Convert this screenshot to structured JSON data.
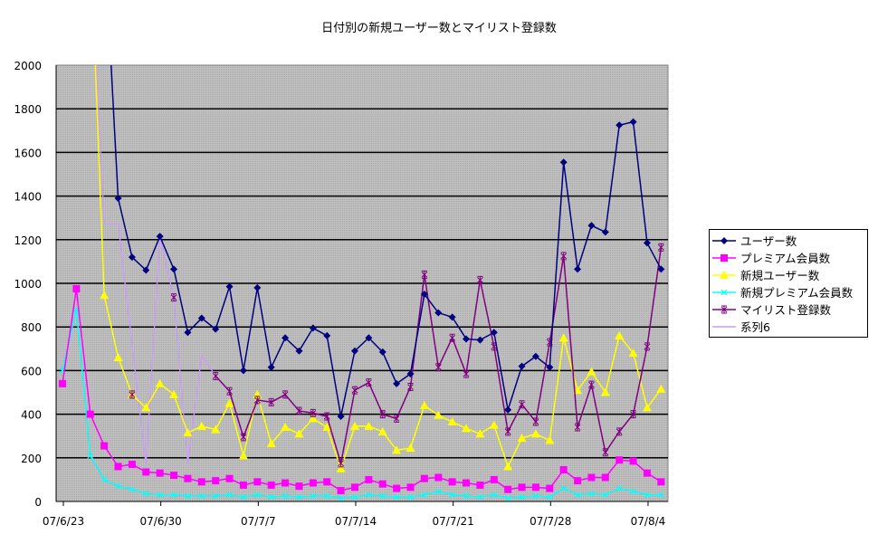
{
  "chart_data": {
    "type": "line",
    "title": "日付別の新規ユーザー数とマイリスト登録数",
    "xlabel": "",
    "ylabel": "",
    "ylim": [
      0,
      2000
    ],
    "yticks": [
      0,
      200,
      400,
      600,
      800,
      1000,
      1200,
      1400,
      1600,
      1800,
      2000
    ],
    "x_tick_labels": [
      "07/6/23",
      "07/6/30",
      "07/7/7",
      "07/7/14",
      "07/7/21",
      "07/7/28",
      "07/8/4"
    ],
    "x_start": "07/6/23",
    "x_end": "07/8/5",
    "grid": true,
    "legend_position": "right",
    "background": "#c0c0c0",
    "series": [
      {
        "name": "ユーザー数",
        "color": "#000080",
        "marker": "diamond",
        "values": [
          null,
          null,
          null,
          2600,
          1390,
          1120,
          1060,
          1215,
          1065,
          775,
          840,
          790,
          985,
          600,
          980,
          615,
          750,
          690,
          795,
          760,
          390,
          690,
          750,
          685,
          540,
          585,
          950,
          865,
          845,
          745,
          740,
          775,
          420,
          620,
          665,
          615,
          1555,
          1065,
          1265,
          1235,
          1725,
          1740,
          1185,
          1065
        ]
      },
      {
        "name": "プレミアム会員数",
        "color": "#ff00ff",
        "marker": "square",
        "values": [
          540,
          975,
          400,
          255,
          160,
          170,
          135,
          130,
          120,
          105,
          90,
          95,
          105,
          75,
          90,
          75,
          85,
          70,
          85,
          90,
          50,
          65,
          100,
          80,
          60,
          65,
          105,
          110,
          90,
          85,
          75,
          100,
          55,
          65,
          65,
          60,
          145,
          95,
          110,
          110,
          190,
          185,
          130,
          90
        ]
      },
      {
        "name": "新規ユーザー数",
        "color": "#ffff00",
        "marker": "triangle",
        "values": [
          null,
          null,
          2600,
          945,
          660,
          490,
          430,
          540,
          490,
          315,
          345,
          330,
          450,
          210,
          490,
          265,
          340,
          310,
          380,
          340,
          150,
          345,
          345,
          320,
          235,
          245,
          440,
          395,
          365,
          335,
          310,
          350,
          160,
          290,
          310,
          280,
          750,
          510,
          595,
          500,
          760,
          680,
          430,
          515
        ]
      },
      {
        "name": "新規プレミアム会員数",
        "color": "#00ffff",
        "marker": "x",
        "values": [
          600,
          880,
          210,
          100,
          70,
          55,
          35,
          30,
          30,
          25,
          25,
          25,
          30,
          20,
          30,
          20,
          25,
          20,
          25,
          25,
          15,
          20,
          30,
          25,
          20,
          20,
          30,
          45,
          30,
          25,
          20,
          30,
          15,
          20,
          25,
          20,
          60,
          30,
          35,
          30,
          60,
          45,
          30,
          30
        ]
      },
      {
        "name": "マイリスト登録数",
        "color": "#800080",
        "marker": "star",
        "values": [
          null,
          null,
          null,
          null,
          null,
          490,
          null,
          null,
          935,
          null,
          null,
          575,
          505,
          295,
          465,
          455,
          490,
          415,
          405,
          390,
          175,
          510,
          545,
          400,
          380,
          525,
          1040,
          615,
          750,
          585,
          1015,
          710,
          320,
          445,
          365,
          730,
          1125,
          340,
          535,
          225,
          320,
          400,
          710,
          1165
        ]
      },
      {
        "name": "系列6",
        "color": "#cc99ff",
        "marker": "none",
        "values": [
          null,
          null,
          2600,
          1275,
          1275,
          720,
          170,
          1210,
          935,
          175,
          670,
          575
        ]
      }
    ]
  }
}
